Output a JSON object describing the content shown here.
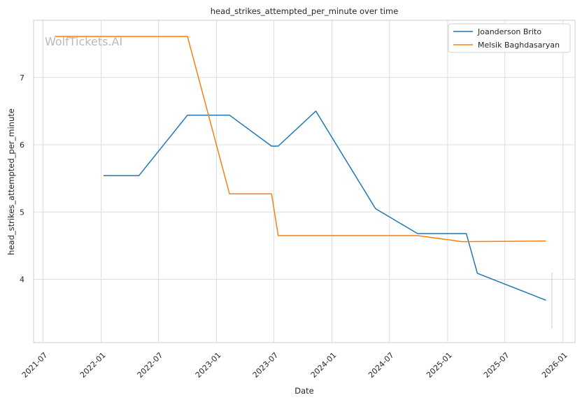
{
  "chart_data": {
    "type": "line",
    "title": "head_strikes_attempted_per_minute over time",
    "xlabel": "Date",
    "ylabel": "head_strikes_attempted_per_minute",
    "watermark": "WolfTickets.AI",
    "x_ticks": [
      "2021-07",
      "2022-01",
      "2022-07",
      "2023-01",
      "2023-07",
      "2024-01",
      "2024-07",
      "2025-01",
      "2025-07",
      "2026-01"
    ],
    "y_ticks": [
      4,
      5,
      6,
      7
    ],
    "xlim": [
      "2021-06-01",
      "2026-02-08"
    ],
    "ylim": [
      3.06,
      7.85
    ],
    "grid": true,
    "legend_position": "top-right",
    "series": [
      {
        "name": "Joanderson Brito",
        "color": "#1f77b4",
        "points": [
          [
            "2022-01-08",
            5.54
          ],
          [
            "2022-04-30",
            5.54
          ],
          [
            "2022-10-01",
            6.44
          ],
          [
            "2023-02-11",
            6.44
          ],
          [
            "2023-06-24",
            5.98
          ],
          [
            "2023-07-15",
            5.98
          ],
          [
            "2023-11-11",
            6.5
          ],
          [
            "2024-05-18",
            5.05
          ],
          [
            "2024-09-28",
            4.68
          ],
          [
            "2025-03-01",
            4.68
          ],
          [
            "2025-04-05",
            4.09
          ],
          [
            "2025-11-08",
            3.69
          ]
        ]
      },
      {
        "name": "Melsik Baghdasaryan",
        "color": "#ff7f0e",
        "points": [
          [
            "2021-08-07",
            7.61
          ],
          [
            "2022-10-01",
            7.61
          ],
          [
            "2023-02-11",
            5.27
          ],
          [
            "2023-06-24",
            5.27
          ],
          [
            "2023-07-15",
            4.65
          ],
          [
            "2024-09-28",
            4.65
          ],
          [
            "2025-02-15",
            4.56
          ],
          [
            "2025-11-08",
            4.57
          ]
        ]
      }
    ]
  }
}
